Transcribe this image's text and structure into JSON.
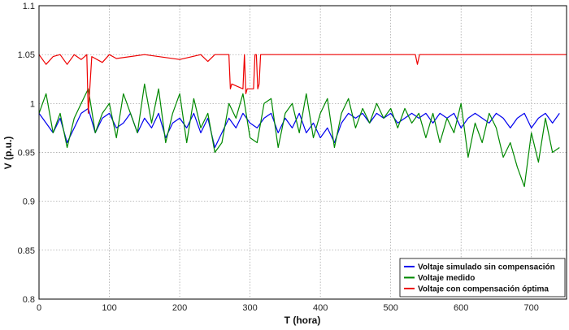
{
  "chart_data": {
    "type": "line",
    "xlabel": "T (hora)",
    "ylabel": "V (p.u.)",
    "xlim": [
      0,
      750
    ],
    "ylim": [
      0.8,
      1.1
    ],
    "xticks": [
      "0",
      "100",
      "200",
      "300",
      "400",
      "500",
      "600",
      "700"
    ],
    "yticks": [
      "0.8",
      "0.85",
      "0.9",
      "0.95",
      "1",
      "1.05",
      "1.1"
    ],
    "grid": true,
    "legend_position": "bottom-right",
    "series": [
      {
        "name": "Voltaje simulado sin compensación",
        "color": "#0000ee",
        "x": [
          0,
          10,
          20,
          30,
          40,
          50,
          60,
          70,
          80,
          90,
          100,
          110,
          120,
          130,
          140,
          150,
          160,
          170,
          180,
          190,
          200,
          210,
          220,
          230,
          240,
          250,
          260,
          270,
          280,
          290,
          300,
          310,
          320,
          330,
          340,
          350,
          360,
          370,
          380,
          390,
          400,
          410,
          420,
          430,
          440,
          450,
          460,
          470,
          480,
          490,
          500,
          510,
          520,
          530,
          540,
          550,
          560,
          570,
          580,
          590,
          600,
          610,
          620,
          630,
          640,
          650,
          660,
          670,
          680,
          690,
          700,
          710,
          720,
          730,
          740
        ],
        "y": [
          0.99,
          0.98,
          0.97,
          0.985,
          0.96,
          0.975,
          0.99,
          0.995,
          0.97,
          0.985,
          0.99,
          0.975,
          0.98,
          0.99,
          0.97,
          0.985,
          0.975,
          0.99,
          0.965,
          0.98,
          0.985,
          0.975,
          0.99,
          0.97,
          0.985,
          0.955,
          0.97,
          0.985,
          0.975,
          0.99,
          0.98,
          0.975,
          0.985,
          0.99,
          0.97,
          0.985,
          0.975,
          0.99,
          0.97,
          0.98,
          0.965,
          0.975,
          0.96,
          0.98,
          0.99,
          0.985,
          0.99,
          0.98,
          0.99,
          0.985,
          0.99,
          0.98,
          0.985,
          0.99,
          0.985,
          0.99,
          0.98,
          0.99,
          0.985,
          0.99,
          0.975,
          0.985,
          0.99,
          0.985,
          0.98,
          0.99,
          0.985,
          0.975,
          0.985,
          0.99,
          0.975,
          0.985,
          0.99,
          0.98,
          0.99
        ]
      },
      {
        "name": "Voltaje medido",
        "color": "#008800",
        "x": [
          0,
          10,
          20,
          30,
          40,
          50,
          60,
          70,
          80,
          90,
          100,
          110,
          120,
          130,
          140,
          150,
          160,
          170,
          180,
          190,
          200,
          210,
          220,
          230,
          240,
          250,
          260,
          270,
          280,
          290,
          300,
          310,
          320,
          330,
          340,
          350,
          360,
          370,
          380,
          390,
          400,
          410,
          420,
          430,
          440,
          450,
          460,
          470,
          480,
          490,
          500,
          510,
          520,
          530,
          540,
          550,
          560,
          570,
          580,
          590,
          600,
          610,
          620,
          630,
          640,
          650,
          660,
          670,
          680,
          690,
          700,
          710,
          720,
          730,
          740
        ],
        "y": [
          0.99,
          1.01,
          0.97,
          0.99,
          0.955,
          0.985,
          1.0,
          1.015,
          0.97,
          0.99,
          1.0,
          0.965,
          1.01,
          0.99,
          0.97,
          1.02,
          0.98,
          1.015,
          0.96,
          0.99,
          1.01,
          0.96,
          1.005,
          0.975,
          0.99,
          0.95,
          0.96,
          1.0,
          0.985,
          1.01,
          0.965,
          0.96,
          1.0,
          1.005,
          0.955,
          0.99,
          1.0,
          0.97,
          1.01,
          0.965,
          0.99,
          1.005,
          0.955,
          0.99,
          1.005,
          0.975,
          0.995,
          0.98,
          1.0,
          0.985,
          0.995,
          0.975,
          0.995,
          0.98,
          0.99,
          0.965,
          0.99,
          0.96,
          0.985,
          0.97,
          1.0,
          0.945,
          0.98,
          0.96,
          0.99,
          0.975,
          0.945,
          0.96,
          0.935,
          0.915,
          0.97,
          0.94,
          0.985,
          0.95,
          0.955
        ]
      },
      {
        "name": "Voltaje con compensación óptima",
        "color": "#ee0000",
        "x": [
          0,
          10,
          20,
          30,
          40,
          50,
          60,
          65,
          68,
          70,
          75,
          90,
          100,
          110,
          150,
          200,
          230,
          240,
          250,
          270,
          272,
          274,
          290,
          292,
          294,
          296,
          298,
          305,
          307,
          309,
          311,
          313,
          315,
          400,
          500,
          535,
          538,
          541,
          600,
          700,
          750
        ],
        "y": [
          1.05,
          1.04,
          1.048,
          1.05,
          1.04,
          1.05,
          1.045,
          1.048,
          1.05,
          0.99,
          1.048,
          1.042,
          1.05,
          1.046,
          1.05,
          1.045,
          1.05,
          1.043,
          1.05,
          1.05,
          1.015,
          1.02,
          1.015,
          1.05,
          1.01,
          1.015,
          1.015,
          1.015,
          1.05,
          1.05,
          1.015,
          1.02,
          1.05,
          1.05,
          1.05,
          1.05,
          1.04,
          1.05,
          1.05,
          1.05,
          1.05
        ]
      }
    ]
  }
}
